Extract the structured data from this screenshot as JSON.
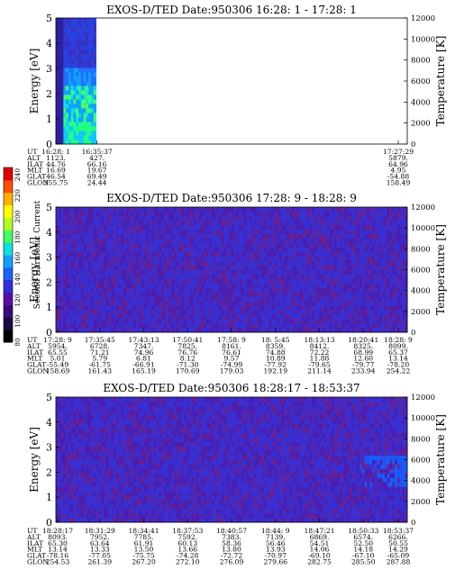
{
  "colorbar": {
    "label": "Second Harmonic Current",
    "ticks": [
      "80",
      "100",
      "120",
      "140",
      "160",
      "180",
      "200",
      "220",
      "240"
    ]
  },
  "chart_data": [
    {
      "type": "heatmap",
      "title": "EXOS-D/TED   Date:950306  16:28: 1 - 17:28: 1",
      "ylabel_left": "Energy [eV]",
      "ylabel_right": "Temperature [K]",
      "ylim_left": [
        0,
        5
      ],
      "ylim_right": [
        0,
        12000
      ],
      "yticks_left": [
        "0",
        "1",
        "2",
        "3",
        "4",
        "5"
      ],
      "yticks_right": [
        "0",
        "2000",
        "4000",
        "6000",
        "8000",
        "10000",
        "12000"
      ],
      "pattern": "data only in first ~11% of interval (16:28:01-16:35:37); remainder blank",
      "orbit_labels": [
        "UT",
        "ALT",
        "ILAT",
        "MLT",
        "GLAT",
        "GLON"
      ],
      "orbit_columns": [
        {
          "UT": "16:28: 1",
          "ALT": "1123.",
          "ILAT": "44.76",
          "MLT": "16.69",
          "GLAT": "46.54",
          "GLON": "355.75"
        },
        {
          "UT": "16:35:37",
          "ALT": "427.",
          "ILAT": "66.16",
          "MLT": "19.67",
          "GLAT": "69.49",
          "GLON": "24.44"
        },
        {
          "UT": "17:27:29",
          "ALT": "5879.",
          "ILAT": "64.96",
          "MLT": "4.95",
          "GLAT": "-54.88",
          "GLON": "158.49"
        }
      ]
    },
    {
      "type": "heatmap",
      "title": "EXOS-D/TED   Date:950306  17:28: 9 - 18:28: 9",
      "ylabel_left": "Energy [eV]",
      "ylabel_right": "Temperature [K]",
      "ylim_left": [
        0,
        5
      ],
      "ylim_right": [
        0,
        12000
      ],
      "yticks_left": [
        "0",
        "1",
        "2",
        "3",
        "4",
        "5"
      ],
      "yticks_right": [
        "0",
        "2000",
        "4000",
        "6000",
        "8000",
        "10000",
        "12000"
      ],
      "pattern": "uniform low-level noise across full interval",
      "orbit_labels": [
        "UT",
        "ALT",
        "ILAT",
        "MLT",
        "GLAT",
        "GLON"
      ],
      "orbit_columns": [
        {
          "UT": "17:28: 9",
          "ALT": "5954.",
          "ILAT": "65.55",
          "MLT": "5.01",
          "GLAT": "-55.49",
          "GLON": "158.69"
        },
        {
          "UT": "17:35:45",
          "ALT": "6728.",
          "ILAT": "71.21",
          "MLT": "5.79",
          "GLAT": "-61.75",
          "GLON": "161.43"
        },
        {
          "UT": "17:43:13",
          "ALT": "7347.",
          "ILAT": "74.96",
          "MLT": "6.81",
          "GLAT": "-66.91",
          "GLON": "165.19"
        },
        {
          "UT": "17:50:41",
          "ALT": "7825.",
          "ILAT": "76.76",
          "MLT": "8.12",
          "GLAT": "-71.30",
          "GLON": "170.69"
        },
        {
          "UT": "17:58: 9",
          "ALT": "8161.",
          "ILAT": "76.61",
          "MLT": "9.57",
          "GLAT": "-74.99",
          "GLON": "179.03"
        },
        {
          "UT": "18: 5:45",
          "ALT": "8359.",
          "ILAT": "74.88",
          "MLT": "10.89",
          "GLAT": "-77.92",
          "GLON": "192.19"
        },
        {
          "UT": "18:13:13",
          "ALT": "8412.",
          "ILAT": "72.22",
          "MLT": "11.88",
          "GLAT": "-79.65",
          "GLON": "211.14"
        },
        {
          "UT": "18:20:41",
          "ALT": "8325.",
          "ILAT": "68.99",
          "MLT": "12.60",
          "GLAT": "-79.77",
          "GLON": "233.94"
        },
        {
          "UT": "18:28: 9",
          "ALT": "8099.",
          "ILAT": "65.37",
          "MLT": "13.14",
          "GLAT": "-78.20",
          "GLON": "254.22"
        }
      ]
    },
    {
      "type": "heatmap",
      "title": "EXOS-D/TED   Date:950306  18:28:17 - 18:53:37",
      "ylabel_left": "Energy [eV]",
      "ylabel_right": "Temperature [K]",
      "ylim_left": [
        0,
        5
      ],
      "ylim_right": [
        0,
        12000
      ],
      "yticks_left": [
        "0",
        "1",
        "2",
        "3",
        "4",
        "5"
      ],
      "yticks_right": [
        "0",
        "2000",
        "4000",
        "6000",
        "8000",
        "10000",
        "12000"
      ],
      "pattern": "low-level noise with enhancement near 2-3 eV at end of interval",
      "orbit_labels": [
        "UT",
        "ALT",
        "ILAT",
        "MLT",
        "GLAT",
        "GLON"
      ],
      "orbit_columns": [
        {
          "UT": "18:28:17",
          "ALT": "8093.",
          "ILAT": "65.30",
          "MLT": "13.14",
          "GLAT": "-78.16",
          "GLON": "254.53"
        },
        {
          "UT": "18:31:29",
          "ALT": "7952.",
          "ILAT": "63.64",
          "MLT": "13.33",
          "GLAT": "-77.05",
          "GLON": "261.39"
        },
        {
          "UT": "18:34:41",
          "ALT": "7785.",
          "ILAT": "61.91",
          "MLT": "13.50",
          "GLAT": "-75.75",
          "GLON": "267.20"
        },
        {
          "UT": "18:37:53",
          "ALT": "7592.",
          "ILAT": "60.13",
          "MLT": "13.66",
          "GLAT": "-74.28",
          "GLON": "272.10"
        },
        {
          "UT": "18:40:57",
          "ALT": "7383.",
          "ILAT": "58.36",
          "MLT": "13.80",
          "GLAT": "-72.72",
          "GLON": "276.09"
        },
        {
          "UT": "18:44: 9",
          "ALT": "7139.",
          "ILAT": "56.46",
          "MLT": "13.93",
          "GLAT": "-70.97",
          "GLON": "279.66"
        },
        {
          "UT": "18:47:21",
          "ALT": "6869.",
          "ILAT": "54.51",
          "MLT": "14.06",
          "GLAT": "-69.10",
          "GLON": "282.75"
        },
        {
          "UT": "18:50:33",
          "ALT": "6574.",
          "ILAT": "52.50",
          "MLT": "14.18",
          "GLAT": "-67.10",
          "GLON": "285.50"
        },
        {
          "UT": "18:53:37",
          "ALT": "6266.",
          "ILAT": "50.55",
          "MLT": "14.29",
          "GLAT": "-65.09",
          "GLON": "287.88"
        }
      ]
    }
  ]
}
